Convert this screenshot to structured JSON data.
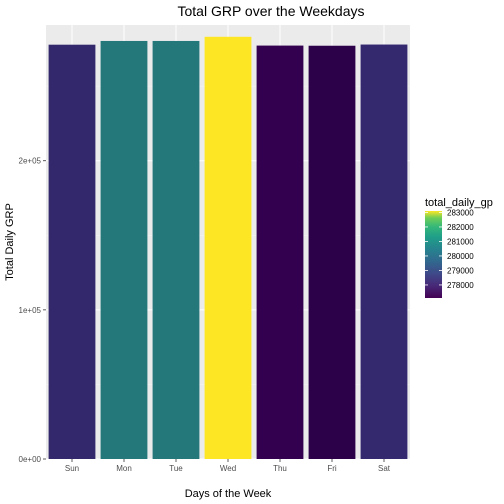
{
  "chart_data": {
    "type": "bar",
    "title": "Total GRP over the Weekdays",
    "xlabel": "Days of the Week",
    "ylabel": "Total Daily GRP",
    "categories": [
      "Sun",
      "Mon",
      "Tue",
      "Wed",
      "Thu",
      "Fri",
      "Sat"
    ],
    "values": [
      277800,
      280300,
      280300,
      283100,
      277200,
      277100,
      277900
    ],
    "ylim": [
      0,
      291000
    ],
    "yticks": [
      0,
      100000,
      200000
    ],
    "ytick_labels": [
      "0e+00",
      "1e+05",
      "2e+05"
    ],
    "grid": true,
    "fill_scale": "viridis",
    "legend": {
      "title": "total_daily_gp",
      "position": "right",
      "min": 277100,
      "max": 283100,
      "breaks": [
        278000,
        279000,
        280000,
        281000,
        282000,
        283000
      ],
      "break_labels": [
        "278000",
        "279000",
        "280000",
        "281000",
        "282000",
        "283000"
      ]
    }
  },
  "colors": {
    "panel_background": "#ebebeb",
    "grid_major": "#ffffff",
    "grid_minor": "#f5f5f5",
    "bar_colors": [
      "#33286b",
      "#25787a",
      "#25787a",
      "#fde725",
      "#32004f",
      "#2d004a",
      "#34296f"
    ]
  }
}
